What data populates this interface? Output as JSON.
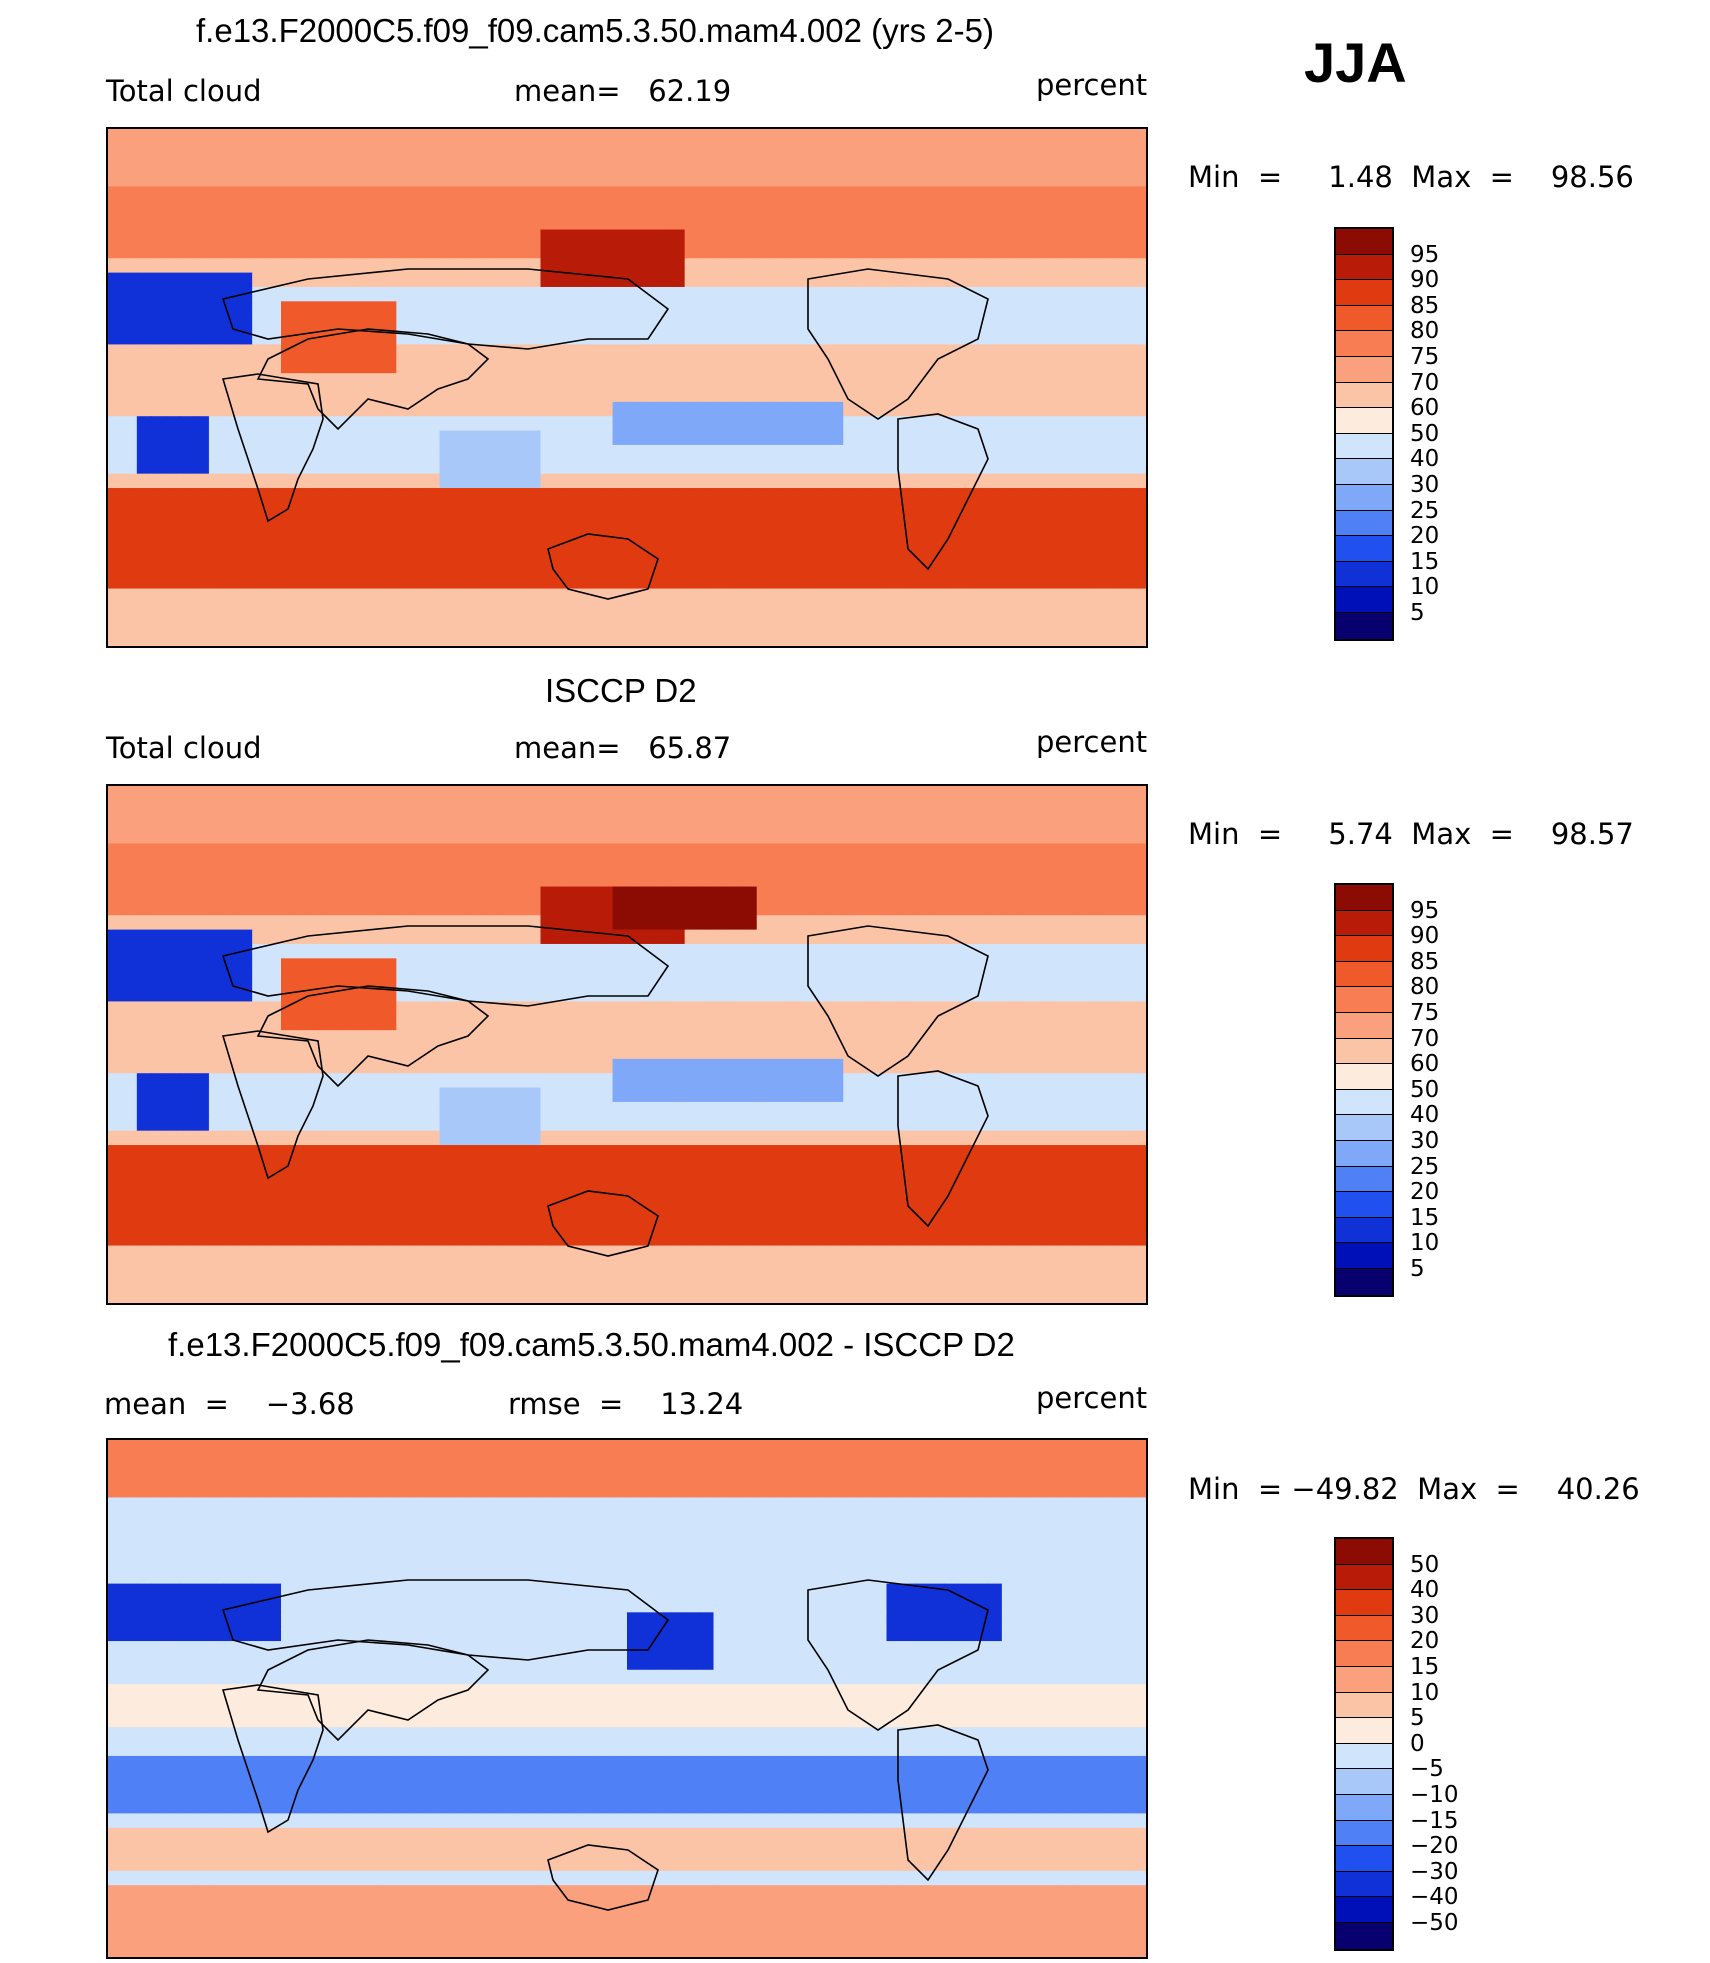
{
  "season": "JJA",
  "colors": {
    "seq": [
      "#08006e",
      "#0010b8",
      "#1030d8",
      "#2050f0",
      "#5080f5",
      "#80a8f8",
      "#a8c8fa",
      "#d0e4fb",
      "#fdebdd",
      "#fcc4a6",
      "#fba07c",
      "#f87d52",
      "#f05a2a",
      "#e03a10",
      "#b81c08",
      "#8c0c04"
    ],
    "diff": [
      "#08006e",
      "#0010b8",
      "#1030d8",
      "#2050f0",
      "#5080f5",
      "#80a8f8",
      "#a8c8fa",
      "#d0e4fb",
      "#fdebdd",
      "#fcc4a6",
      "#fba07c",
      "#f87d52",
      "#f05a2a",
      "#e03a10",
      "#b81c08",
      "#8c0c04"
    ]
  },
  "panels": [
    {
      "title": "f.e13.F2000C5.f09_f09.cam5.3.50.mam4.002 (yrs 2-5)",
      "left_label": "Total cloud",
      "center_label": "mean=   62.19",
      "right_label": "percent",
      "minmax": "Min  =     1.48  Max  =    98.56"
    },
    {
      "title": "ISCCP D2",
      "left_label": "Total cloud",
      "center_label": "mean=   65.87",
      "right_label": "percent",
      "minmax": "Min  =     5.74  Max  =    98.57"
    },
    {
      "title": "f.e13.F2000C5.f09_f09.cam5.3.50.mam4.002 - ISCCP D2",
      "left_label": "mean  =    −3.68",
      "center_label": "rmse  =    13.24",
      "right_label": "percent",
      "minmax": "Min  = −49.82  Max  =    40.26"
    }
  ],
  "chart_data": [
    {
      "type": "heatmap",
      "title": "f.e13.F2000C5.f09_f09.cam5.3.50.mam4.002 (yrs 2-5)",
      "variable": "Total cloud",
      "units": "percent",
      "mean": 62.19,
      "min": 1.48,
      "max": 98.56,
      "colorbar_levels": [
        "95",
        "90",
        "85",
        "80",
        "75",
        "70",
        "60",
        "50",
        "40",
        "30",
        "25",
        "20",
        "15",
        "10",
        "5"
      ]
    },
    {
      "type": "heatmap",
      "title": "ISCCP D2",
      "variable": "Total cloud",
      "units": "percent",
      "mean": 65.87,
      "min": 5.74,
      "max": 98.57,
      "colorbar_levels": [
        "95",
        "90",
        "85",
        "80",
        "75",
        "70",
        "60",
        "50",
        "40",
        "30",
        "25",
        "20",
        "15",
        "10",
        "5"
      ]
    },
    {
      "type": "heatmap",
      "title": "f.e13.F2000C5.f09_f09.cam5.3.50.mam4.002 - ISCCP D2",
      "units": "percent",
      "mean": -3.68,
      "rmse": 13.24,
      "min": -49.82,
      "max": 40.26,
      "colorbar_levels": [
        "50",
        "40",
        "30",
        "20",
        "15",
        "10",
        "5",
        "0",
        "−5",
        "−10",
        "−15",
        "−20",
        "−30",
        "−40",
        "−50"
      ]
    }
  ]
}
